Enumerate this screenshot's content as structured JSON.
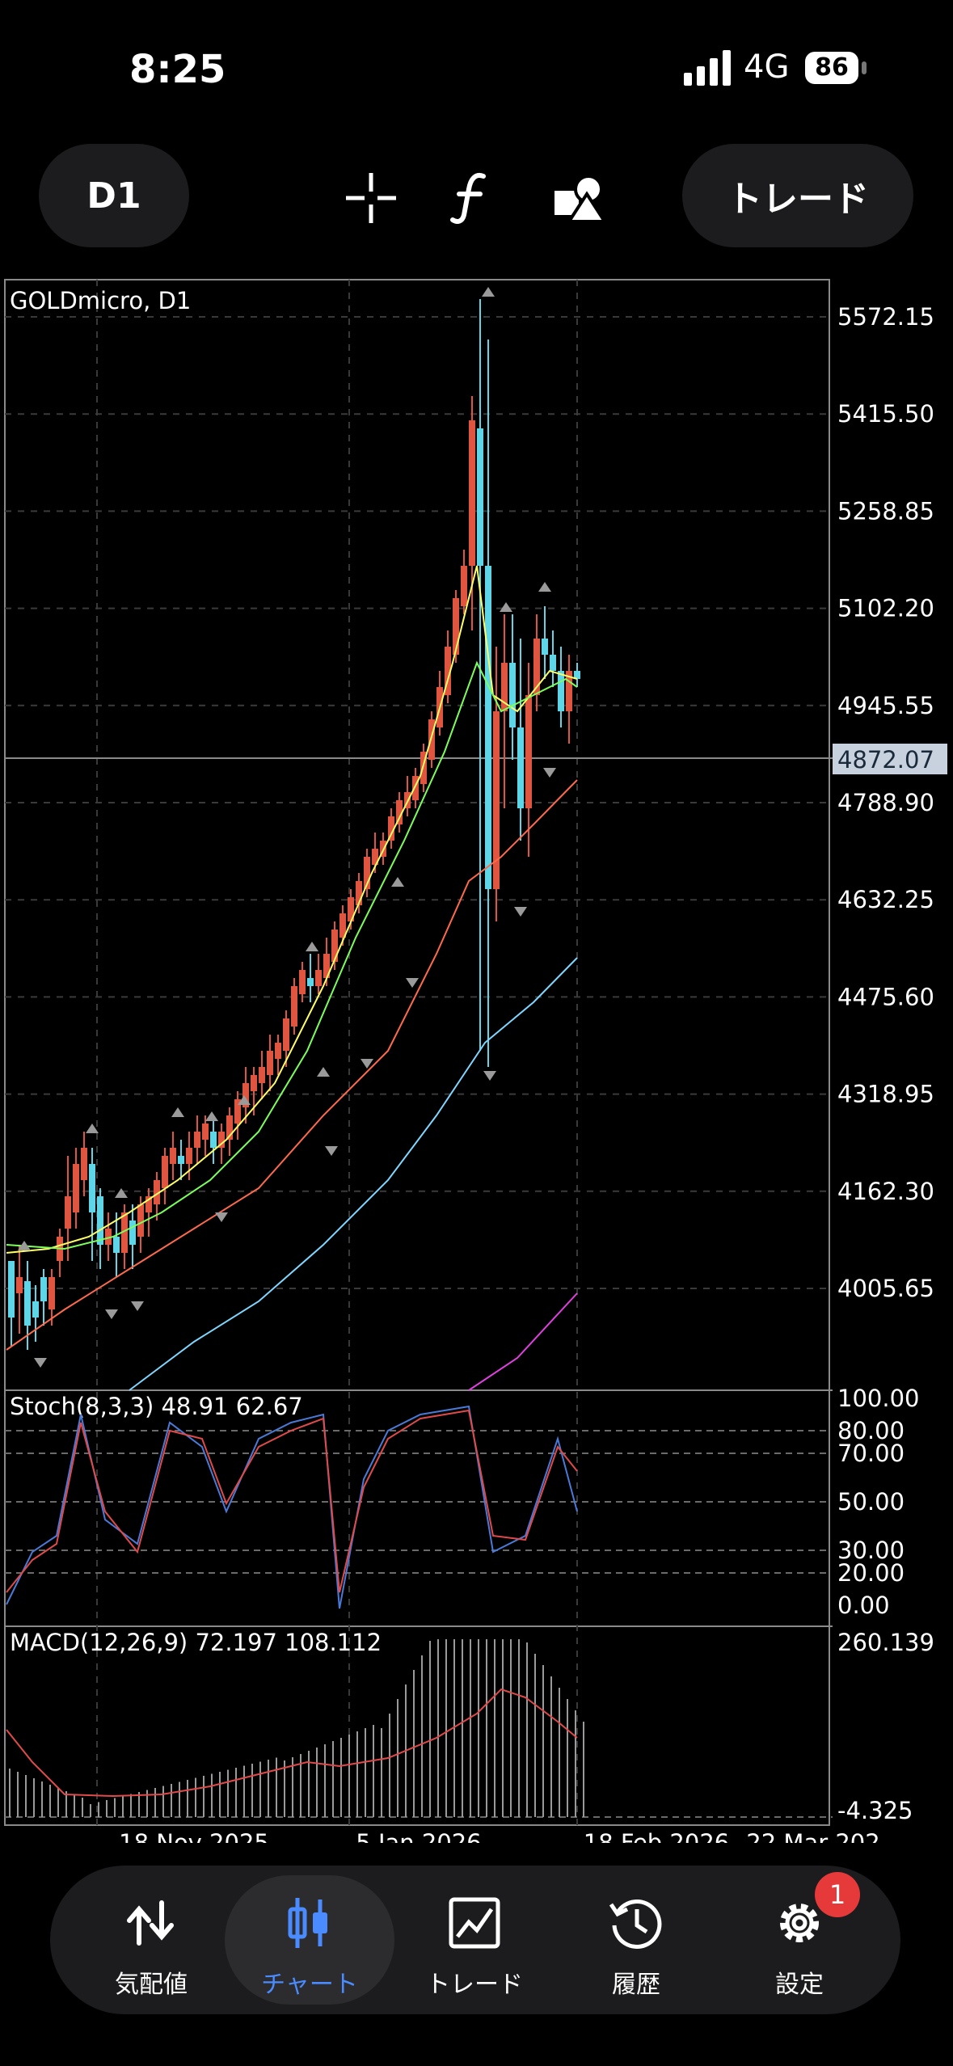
{
  "status": {
    "time": "8:25",
    "network": "4G",
    "battery": "86"
  },
  "toolbar": {
    "timeframe": "D1",
    "trade": "トレード"
  },
  "main_chart": {
    "title": "GOLDmicro, D1",
    "current_price": "4872.07",
    "price_labels": [
      "5572.15",
      "5415.50",
      "5258.85",
      "5102.20",
      "4945.55",
      "4788.90",
      "4632.25",
      "4475.60",
      "4318.95",
      "4162.30",
      "4005.65"
    ]
  },
  "stoch": {
    "label": "Stoch(8,3,3) 48.91 62.67",
    "levels": [
      "100.00",
      "80.00",
      "70.00",
      "50.00",
      "30.00",
      "20.00",
      "0.00"
    ]
  },
  "macd": {
    "label": "MACD(12,26,9) 72.197 108.112",
    "top": "260.139",
    "bottom": "-4.325"
  },
  "dates": [
    "18 Nov 2025",
    "5 Jan 2026",
    "18 Feb 2026",
    "22 Mar 202"
  ],
  "colors": {
    "bull": "#e0553f",
    "bear": "#5fd5e8",
    "accent": "#4a8cff"
  },
  "nav": {
    "items": [
      {
        "label": "気配値",
        "icon": "quotes-arrows-icon"
      },
      {
        "label": "チャート",
        "icon": "chart-candles-icon"
      },
      {
        "label": "トレード",
        "icon": "trade-chart-icon"
      },
      {
        "label": "履歴",
        "icon": "history-clock-icon"
      },
      {
        "label": "設定",
        "icon": "settings-gear-icon"
      }
    ],
    "badge": "1"
  }
}
